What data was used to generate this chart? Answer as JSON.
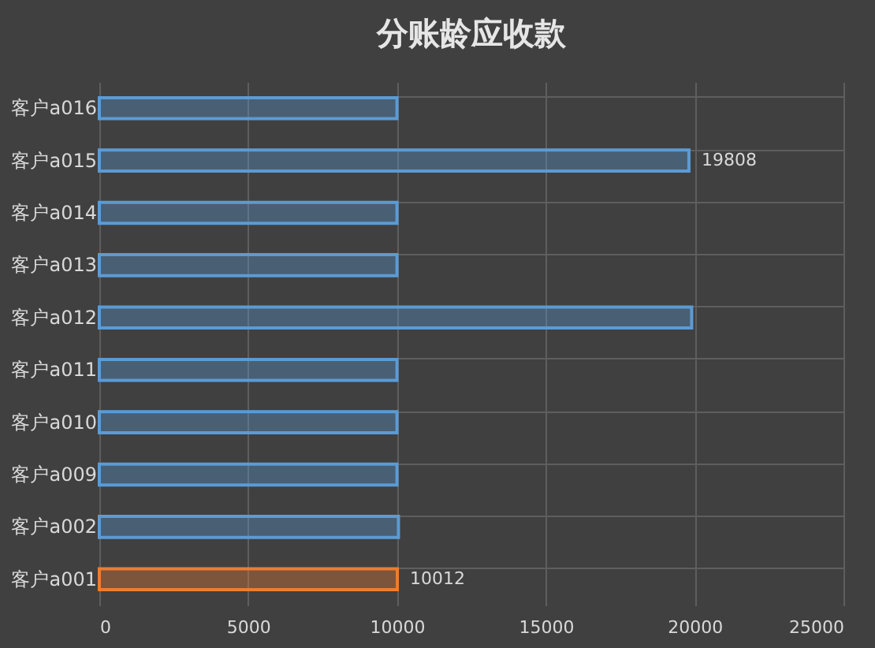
{
  "chart_data": {
    "type": "bar",
    "orientation": "horizontal",
    "title": "分账龄应收款",
    "categories": [
      "客户a016",
      "客户a015",
      "客户a014",
      "客户a013",
      "客户a012",
      "客户a011",
      "客户a010",
      "客户a009",
      "客户a002",
      "客户a001"
    ],
    "values": [
      10000,
      19808,
      10000,
      10000,
      19900,
      10000,
      10000,
      10000,
      10050,
      10012
    ],
    "value_labels": [
      null,
      "19808",
      null,
      null,
      null,
      null,
      null,
      null,
      null,
      "10012"
    ],
    "colors": [
      "#5b9bd5",
      "#5b9bd5",
      "#5b9bd5",
      "#5b9bd5",
      "#5b9bd5",
      "#5b9bd5",
      "#5b9bd5",
      "#5b9bd5",
      "#5b9bd5",
      "#ed7d31"
    ],
    "xlim": [
      0,
      25000
    ],
    "xticks": [
      0,
      5000,
      10000,
      15000,
      20000,
      25000
    ],
    "grid": true
  }
}
